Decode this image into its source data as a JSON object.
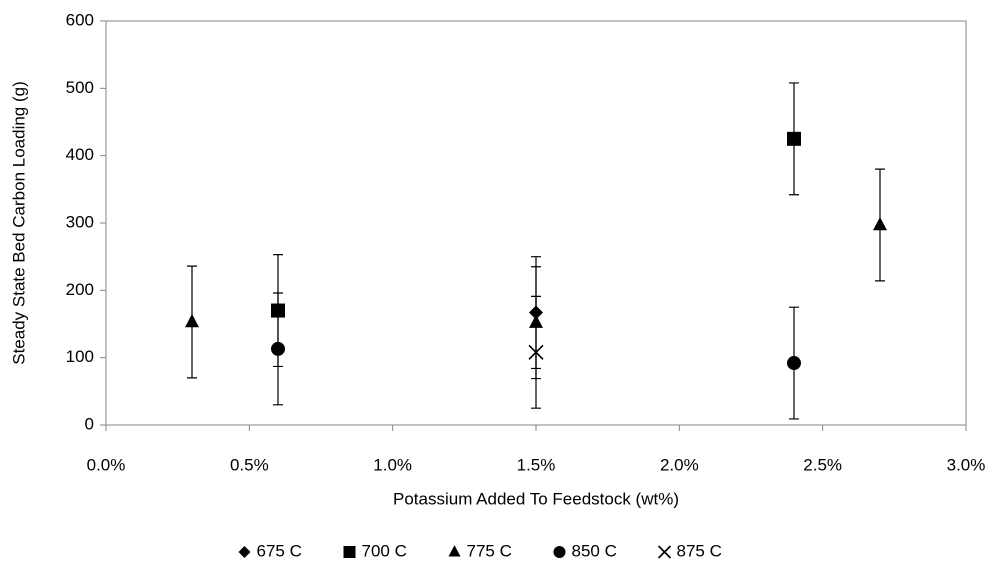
{
  "chart_data": {
    "type": "scatter",
    "xlabel": "Potassium Added To Feedstock (wt%)",
    "ylabel": "Steady State Bed Carbon Loading (g)",
    "xlim": [
      0,
      3
    ],
    "ylim": [
      0,
      600
    ],
    "xticks": [
      {
        "value": 0,
        "label": "0.0%"
      },
      {
        "value": 0.5,
        "label": "0.5%"
      },
      {
        "value": 1,
        "label": "1.0%"
      },
      {
        "value": 1.5,
        "label": "1.5%"
      },
      {
        "value": 2,
        "label": "2.0%"
      },
      {
        "value": 2.5,
        "label": "2.5%"
      },
      {
        "value": 3,
        "label": "3.0%"
      }
    ],
    "yticks": [
      0,
      100,
      200,
      300,
      400,
      500,
      600
    ],
    "grid": false,
    "legend": "bottom",
    "series": [
      {
        "name": "675 C",
        "color": "#000000",
        "marker": "diamond",
        "x": [
          1.5
        ],
        "values": [
          167
        ],
        "errors": [
          83
        ]
      },
      {
        "name": "700 C",
        "color": "#000000",
        "marker": "square",
        "x": [
          0.6,
          2.4
        ],
        "values": [
          170,
          425
        ],
        "errors": [
          83,
          83
        ]
      },
      {
        "name": "775 C",
        "color": "#000000",
        "marker": "triangle",
        "x": [
          0.3,
          1.5,
          2.7
        ],
        "values": [
          153,
          152,
          297
        ],
        "errors": [
          83,
          83,
          83
        ]
      },
      {
        "name": "850 C",
        "color": "#000000",
        "marker": "circle",
        "x": [
          0.6,
          2.4
        ],
        "values": [
          113,
          92
        ],
        "errors": [
          83,
          83
        ]
      },
      {
        "name": "875 C",
        "color": "#000000",
        "marker": "cross",
        "x": [
          1.5
        ],
        "values": [
          108
        ],
        "errors": [
          83
        ]
      }
    ]
  }
}
